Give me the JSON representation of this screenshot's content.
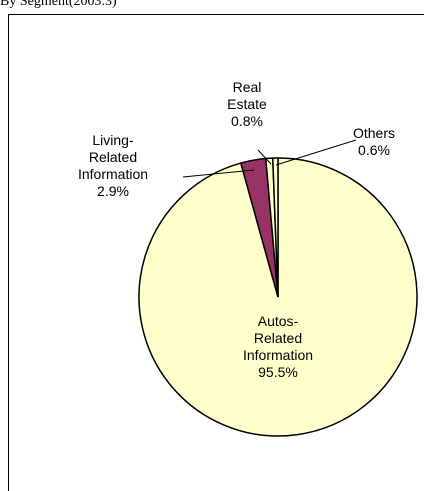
{
  "chart_data": {
    "type": "pie",
    "title": "By Segment(2003.3)",
    "categories": [
      "Autos-\nRelated\nInformation",
      "Living-\nRelated\nInformation",
      "Real\nEstate",
      "Others"
    ],
    "values": [
      95.5,
      2.9,
      0.8,
      0.6
    ],
    "value_labels": [
      "95.5%",
      "2.9%",
      "0.8%",
      "0.6%"
    ],
    "colors": [
      "#ffffcc",
      "#993366",
      "#ffffcc",
      "#ffffcc"
    ]
  }
}
